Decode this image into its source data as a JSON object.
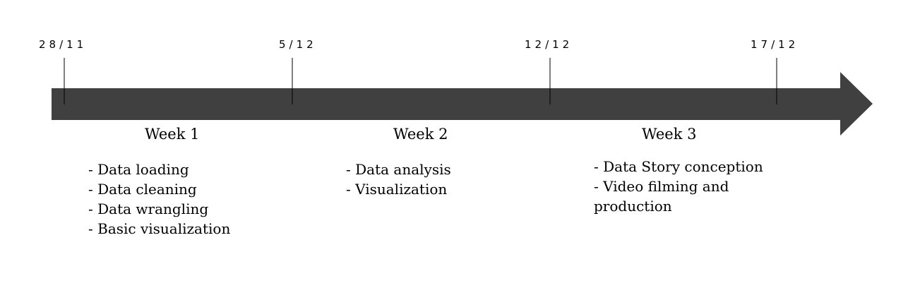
{
  "timeline": {
    "arrow_color": "#404040",
    "tick_color": "#000000",
    "dates": [
      "28/11",
      "5/12",
      "12/12",
      "17/12"
    ]
  },
  "weeks": [
    {
      "title": "Week 1",
      "tasks": [
        "- Data loading",
        "- Data cleaning",
        "- Data wrangling",
        "- Basic visualization"
      ]
    },
    {
      "title": "Week 2",
      "tasks": [
        "- Data analysis",
        "- Visualization"
      ]
    },
    {
      "title": "Week 3",
      "tasks": [
        "- Data Story conception",
        "- Video filming and production"
      ]
    }
  ]
}
